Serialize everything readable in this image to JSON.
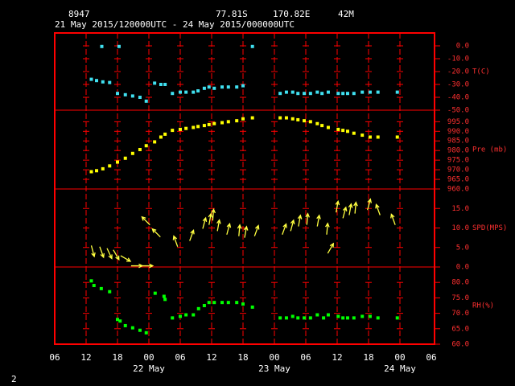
{
  "header": {
    "station": "8947",
    "lat": "77.81S",
    "lon": "170.82E",
    "elev": "42M",
    "period": "21 May 2015/120000UTC - 24 May 2015/000000UTC"
  },
  "page_number": "2",
  "x_axis": {
    "xlim": [
      6,
      78
    ],
    "xticks": [
      {
        "value": 6,
        "label": "06"
      },
      {
        "value": 12,
        "label": "12"
      },
      {
        "value": 18,
        "label": "18"
      },
      {
        "value": 24,
        "label": "00"
      },
      {
        "value": 30,
        "label": "06"
      },
      {
        "value": 36,
        "label": "12"
      },
      {
        "value": 42,
        "label": "18"
      },
      {
        "value": 48,
        "label": "00"
      },
      {
        "value": 54,
        "label": "06"
      },
      {
        "value": 60,
        "label": "12"
      },
      {
        "value": 66,
        "label": "18"
      },
      {
        "value": 72,
        "label": "00"
      },
      {
        "value": 78,
        "label": "06"
      }
    ],
    "day_labels": [
      {
        "value": 24,
        "label": "22 May"
      },
      {
        "value": 48,
        "label": "23 May"
      },
      {
        "value": 72,
        "label": "24 May"
      }
    ]
  },
  "chart_data": [
    {
      "type": "scatter",
      "ylabel": "T(C)",
      "color": "#40e0f0",
      "ylim": [
        -50,
        10
      ],
      "yticks": [
        {
          "value": 0,
          "label": "0.0"
        },
        {
          "value": -10,
          "label": "-10.0"
        },
        {
          "value": -20,
          "label": "-20.0"
        },
        {
          "value": -30,
          "label": "-30.0"
        },
        {
          "value": -40,
          "label": "-40.0"
        },
        {
          "value": -50,
          "label": "-50.0"
        }
      ],
      "x": [
        13,
        14,
        15,
        15.2,
        16.5,
        18,
        18.3,
        19.5,
        20.9,
        22.3,
        23.5,
        25.1,
        26.3,
        27.1,
        28.5,
        30,
        31.1,
        32.5,
        33.4,
        34.6,
        35.5,
        36.5,
        38,
        39.2,
        40.8,
        42,
        43.8,
        49.1,
        50.3,
        51.5,
        52.5,
        53.7,
        54.9,
        56.2,
        57.1,
        58.3,
        60.2,
        61.1,
        62,
        63.2,
        64.8,
        66.3,
        67.8,
        71.5
      ],
      "values": [
        -26,
        -27,
        -0.5,
        -28,
        -28.5,
        -37,
        -0.5,
        -38,
        -39,
        -40,
        -43,
        -29,
        -30,
        -30,
        -37,
        -36,
        -36,
        -36,
        -35,
        -33,
        -32,
        -33,
        -32,
        -32,
        -32,
        -31,
        -0.5,
        -37,
        -36,
        -36,
        -37,
        -37,
        -37,
        -36,
        -37,
        -36,
        -37,
        -37,
        -37,
        -37,
        -36,
        -36,
        -36,
        -36
      ]
    },
    {
      "type": "scatter",
      "ylabel": "Pre (mb)",
      "color": "#ffff00",
      "ylim": [
        960,
        1001
      ],
      "yticks": [
        {
          "value": 995,
          "label": "995.0"
        },
        {
          "value": 990,
          "label": "990.0"
        },
        {
          "value": 985,
          "label": "985.0"
        },
        {
          "value": 980,
          "label": "980.0"
        },
        {
          "value": 975,
          "label": "975.0"
        },
        {
          "value": 970,
          "label": "970.0"
        },
        {
          "value": 965,
          "label": "965.0"
        },
        {
          "value": 960,
          "label": "960.0"
        }
      ],
      "x": [
        13,
        14,
        15.2,
        16.5,
        18,
        19.5,
        20.9,
        22.3,
        23.5,
        25.1,
        26.3,
        27.1,
        28.5,
        30,
        31.1,
        32.5,
        33.4,
        34.6,
        35.5,
        36.5,
        38,
        39.2,
        40.8,
        42,
        43.8,
        49.1,
        50.3,
        51.5,
        52.5,
        53.7,
        54.9,
        56.2,
        57.1,
        58.3,
        60.2,
        61.1,
        62,
        63.2,
        64.8,
        66.3,
        67.8,
        71.5
      ],
      "values": [
        969,
        969.5,
        970.5,
        972,
        974,
        976,
        978.5,
        980.5,
        982.5,
        984.5,
        987,
        988.5,
        990.5,
        991,
        991.5,
        992,
        992.5,
        993,
        993.5,
        994,
        994.5,
        995,
        995.5,
        996.5,
        997,
        997,
        997,
        996.5,
        996,
        995.5,
        995,
        994,
        993,
        992,
        991,
        990.5,
        990,
        989,
        988,
        987,
        987,
        987
      ]
    },
    {
      "type": "quiver",
      "ylabel": "SPD(MPS)",
      "color": "#ffff40",
      "ylim": [
        0,
        20
      ],
      "yticks": [
        {
          "value": 15,
          "label": "15.0"
        },
        {
          "value": 10,
          "label": "10.0"
        },
        {
          "value": 5,
          "label": "5.0"
        },
        {
          "value": 0,
          "label": "0.0"
        }
      ],
      "x": [
        13,
        14.6,
        16,
        17.2,
        18.6,
        20.6,
        22.6,
        24.2,
        26.2,
        29.5,
        31.8,
        34.3,
        35.5,
        36.2,
        37.1,
        38.9,
        41.2,
        42.3,
        44.2,
        49.5,
        51.1,
        52.6,
        54.2,
        56.2,
        58,
        58.2,
        59.8,
        61.1,
        62.3,
        63.4,
        65.8,
        68.2,
        71.1
      ],
      "values": [
        5.5,
        5.2,
        4.8,
        4.4,
        2.9,
        0.3,
        0.3,
        10.8,
        7.7,
        5.2,
        6.7,
        9.8,
        10.8,
        11.9,
        9.2,
        8.3,
        7.9,
        7.5,
        7.9,
        8.3,
        9.2,
        10.4,
        10.8,
        10.4,
        8.3,
        3.5,
        14,
        12.5,
        13.3,
        13.7,
        14.6,
        13.3,
        10.8
      ],
      "direction": [
        165,
        160,
        155,
        150,
        120,
        90,
        90,
        315,
        315,
        340,
        20,
        15,
        10,
        5,
        10,
        15,
        5,
        10,
        20,
        20,
        15,
        10,
        5,
        10,
        5,
        30,
        10,
        15,
        10,
        5,
        15,
        340,
        340
      ]
    },
    {
      "type": "scatter",
      "ylabel": "RH(%)",
      "color": "#00ff00",
      "ylim": [
        60,
        85
      ],
      "yticks": [
        {
          "value": 80,
          "label": "80.0"
        },
        {
          "value": 75,
          "label": "75.0"
        },
        {
          "value": 70,
          "label": "70.0"
        },
        {
          "value": 65,
          "label": "65.0"
        },
        {
          "value": 60,
          "label": "60.0"
        }
      ],
      "x": [
        13,
        13.5,
        14.9,
        16.5,
        18,
        18.5,
        19.5,
        20.9,
        22.3,
        23.5,
        25.2,
        26.9,
        27.1,
        28.5,
        30,
        31.1,
        32.5,
        33.5,
        34.6,
        35.5,
        36.5,
        38,
        39.2,
        40.8,
        42,
        43.8,
        49.1,
        50.3,
        51.5,
        52.5,
        53.7,
        54.9,
        56.2,
        57.4,
        58.3,
        60.2,
        61.1,
        62,
        63.2,
        64.8,
        66.3,
        67.8,
        71.5
      ],
      "values": [
        80.5,
        79,
        78,
        77,
        68,
        67.5,
        66,
        65.3,
        64.5,
        63.7,
        76.5,
        75.5,
        74.5,
        68.5,
        69,
        69.5,
        69.5,
        71.5,
        72.5,
        73.5,
        73.5,
        73.5,
        73.5,
        73.5,
        73,
        72,
        68.5,
        68.5,
        69,
        68.5,
        68.5,
        68.5,
        69.5,
        68.5,
        69.5,
        69,
        68.5,
        68.5,
        68.5,
        69,
        69,
        68.5,
        68.5
      ]
    }
  ]
}
